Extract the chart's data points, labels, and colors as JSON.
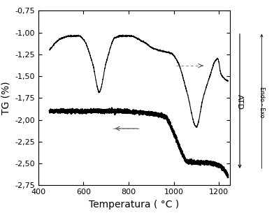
{
  "xlim": [
    400,
    1250
  ],
  "ylim": [
    -2.75,
    -0.75
  ],
  "xlabel": "Temperatura ( °C )",
  "ylabel": "TG (%)",
  "atd_label": "ATD",
  "endo_exo_label": "Endo - Exo",
  "x_ticks": [
    400,
    600,
    800,
    1000,
    1200
  ],
  "y_ticks": [
    -2.75,
    -2.5,
    -2.25,
    -2.0,
    -1.75,
    -1.5,
    -1.25,
    -1.0,
    -0.75
  ],
  "background_color": "#ffffff",
  "line_color": "#000000",
  "figsize": [
    3.92,
    3.05
  ],
  "dpi": 100
}
